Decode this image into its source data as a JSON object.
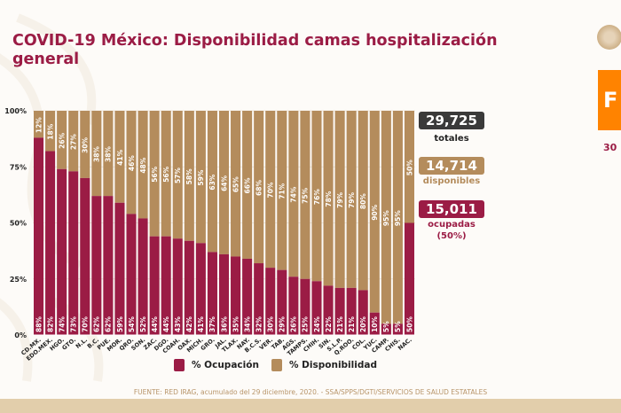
{
  "header": {
    "title": "COVID-19 México: Disponibilidad camas hospitalización general",
    "side_box_letter": "F",
    "side_date": "30"
  },
  "colors": {
    "ocupacion": "#9b1c45",
    "disponibilidad": "#b48c5c",
    "totales_badge": "#3a3a3a",
    "title": "#9b1c45"
  },
  "summary": {
    "totales_value": "29,725",
    "totales_label": "totales",
    "disponibles_value": "14,714",
    "disponibles_label": "disponibles",
    "ocupadas_value": "15,011",
    "ocupadas_label": "ocupadas",
    "ocupadas_pct": "(50%)"
  },
  "legend": {
    "ocupacion": "% Ocupación",
    "disponibilidad": "% Disponibilidad"
  },
  "source": "FUENTE: RED IRAG, acumulado del 29 diciembre, 2020. -  SSA/SPPS/DGTI/SERVICIOS DE SALUD ESTATALES",
  "chart_data": {
    "type": "bar",
    "stacked": true,
    "title": "COVID-19 México: Disponibilidad camas hospitalización general",
    "xlabel": "",
    "ylabel": "",
    "ylim": [
      0,
      100
    ],
    "yticks": [
      "0%",
      "25%",
      "50%",
      "75%",
      "100%"
    ],
    "ytick_values": [
      0,
      25,
      50,
      75,
      100
    ],
    "grid": true,
    "legend_position": "bottom-center",
    "categories": [
      "CD.MX.",
      "EDO.MEX.",
      "HGO.",
      "GTO.",
      "N.L.",
      "B.C.",
      "PUE.",
      "MOR.",
      "QRO.",
      "SON.",
      "ZAC.",
      "DGO.",
      "COAH.",
      "OAX.",
      "MICH.",
      "GRO.",
      "JAL.",
      "TLAX.",
      "NAY.",
      "B.C.S.",
      "VER.",
      "TAB.",
      "AGS.",
      "TAMPS.",
      "CHIH.",
      "SIN.",
      "S.L.P.",
      "Q.ROO.",
      "COL.",
      "YUC.",
      "CAMP.",
      "CHIS.",
      "NAC."
    ],
    "series": [
      {
        "name": "% Ocupación",
        "values": [
          88,
          82,
          74,
          73,
          70,
          62,
          62,
          59,
          54,
          52,
          44,
          44,
          43,
          42,
          41,
          37,
          36,
          35,
          34,
          32,
          30,
          29,
          26,
          25,
          24,
          22,
          21,
          21,
          20,
          10,
          5,
          5,
          50
        ]
      },
      {
        "name": "% Disponibilidad",
        "values": [
          12,
          18,
          26,
          27,
          30,
          38,
          38,
          41,
          46,
          48,
          56,
          56,
          57,
          58,
          59,
          63,
          64,
          65,
          66,
          68,
          70,
          71,
          74,
          75,
          76,
          78,
          79,
          79,
          80,
          90,
          95,
          95,
          50
        ]
      }
    ]
  }
}
